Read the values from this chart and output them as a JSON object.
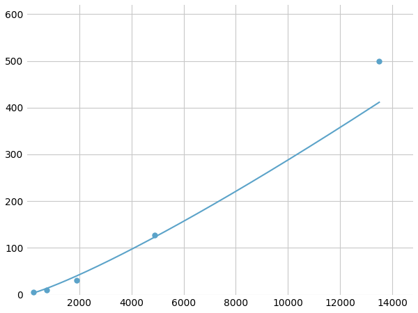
{
  "x_data": [
    250,
    750,
    1900,
    4900,
    13500
  ],
  "y_data": [
    5,
    10,
    30,
    128,
    500
  ],
  "line_color": "#5ba3c9",
  "marker_color": "#5ba3c9",
  "marker_size": 6,
  "line_width": 1.5,
  "xlim": [
    0,
    14800
  ],
  "ylim": [
    0,
    620
  ],
  "xticks": [
    2000,
    4000,
    6000,
    8000,
    10000,
    12000,
    14000
  ],
  "yticks": [
    0,
    100,
    200,
    300,
    400,
    500,
    600
  ],
  "grid_color": "#c8c8c8",
  "background_color": "#ffffff",
  "tick_label_fontsize": 10
}
